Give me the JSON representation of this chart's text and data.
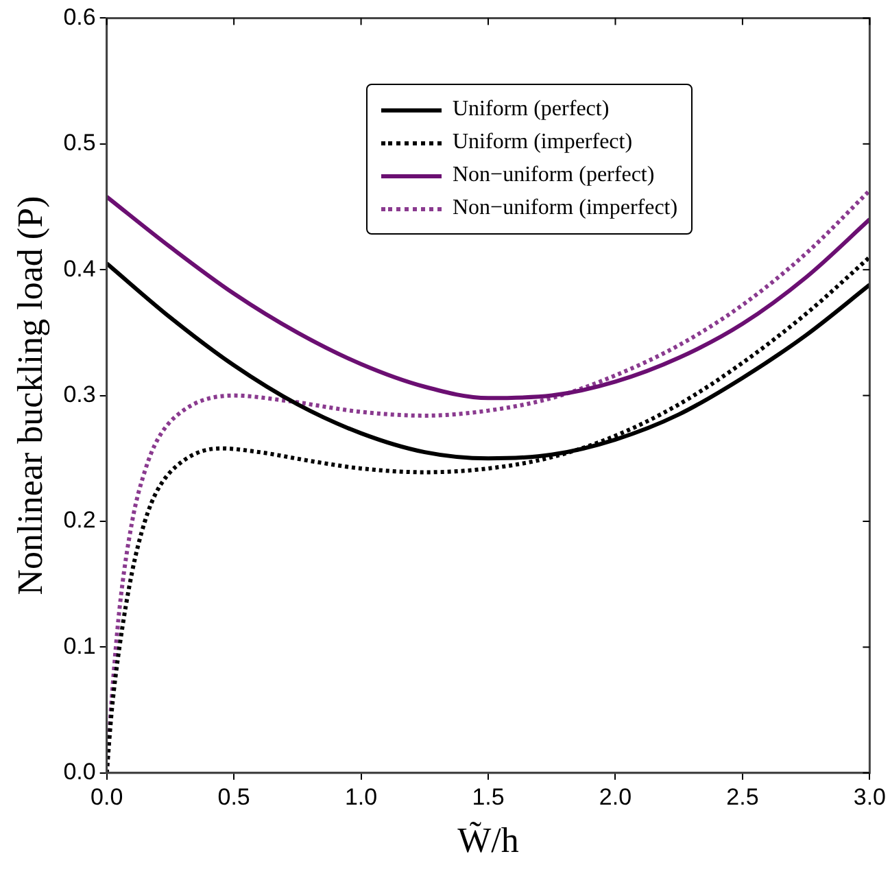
{
  "chart_data": {
    "type": "line",
    "xlabel": "W̃/h",
    "ylabel": "Nonlinear buckling load (P)",
    "xlim": [
      0,
      3
    ],
    "ylim": [
      0,
      0.6
    ],
    "xticks": [
      {
        "value": 0,
        "label": "0.0"
      },
      {
        "value": 0.5,
        "label": "0.5"
      },
      {
        "value": 1,
        "label": "1.0"
      },
      {
        "value": 1.5,
        "label": "1.5"
      },
      {
        "value": 2,
        "label": "2.0"
      },
      {
        "value": 2.5,
        "label": "2.5"
      },
      {
        "value": 3,
        "label": "3.0"
      }
    ],
    "yticks": [
      {
        "value": 0,
        "label": "0.0"
      },
      0.1,
      0.2,
      0.3,
      0.4,
      0.5,
      0.6
    ],
    "grid": false,
    "legend": "top",
    "marker": "none",
    "series": [
      {
        "name": "Uniform (perfect)",
        "color": "#000000",
        "line_style": "solid",
        "x": [
          0,
          0.25,
          0.5,
          0.75,
          1.0,
          1.25,
          1.5,
          1.75,
          2.0,
          2.25,
          2.5,
          2.75,
          3.0
        ],
        "values": [
          0.405,
          0.362,
          0.324,
          0.293,
          0.27,
          0.255,
          0.25,
          0.253,
          0.265,
          0.285,
          0.314,
          0.348,
          0.388
        ]
      },
      {
        "name": "Uniform (imperfect)",
        "color": "#000000",
        "line_style": "dotted",
        "x": [
          0,
          0.02,
          0.05,
          0.1,
          0.15,
          0.2,
          0.3,
          0.45,
          0.6,
          0.8,
          1.0,
          1.25,
          1.5,
          1.75,
          2.0,
          2.25,
          2.5,
          2.75,
          3.0
        ],
        "values": [
          0,
          0.05,
          0.1,
          0.16,
          0.2,
          0.225,
          0.248,
          0.258,
          0.255,
          0.248,
          0.242,
          0.239,
          0.242,
          0.251,
          0.268,
          0.293,
          0.326,
          0.365,
          0.41
        ]
      },
      {
        "name": "Non−uniform (perfect)",
        "color": "#6b0f72",
        "line_style": "solid",
        "x": [
          0,
          0.25,
          0.5,
          0.75,
          1.0,
          1.25,
          1.5,
          1.75,
          2.0,
          2.25,
          2.5,
          2.75,
          3.0
        ],
        "values": [
          0.458,
          0.418,
          0.381,
          0.35,
          0.325,
          0.307,
          0.298,
          0.3,
          0.311,
          0.33,
          0.357,
          0.394,
          0.44
        ]
      },
      {
        "name": "Non−uniform (imperfect)",
        "color": "#8a3a8f",
        "line_style": "dotted",
        "x": [
          0,
          0.02,
          0.05,
          0.1,
          0.15,
          0.2,
          0.3,
          0.5,
          0.7,
          1.0,
          1.25,
          1.5,
          1.75,
          2.0,
          2.25,
          2.5,
          2.75,
          3.0
        ],
        "values": [
          0,
          0.06,
          0.13,
          0.2,
          0.24,
          0.265,
          0.288,
          0.3,
          0.296,
          0.287,
          0.284,
          0.288,
          0.298,
          0.316,
          0.34,
          0.372,
          0.413,
          0.463
        ]
      }
    ]
  }
}
